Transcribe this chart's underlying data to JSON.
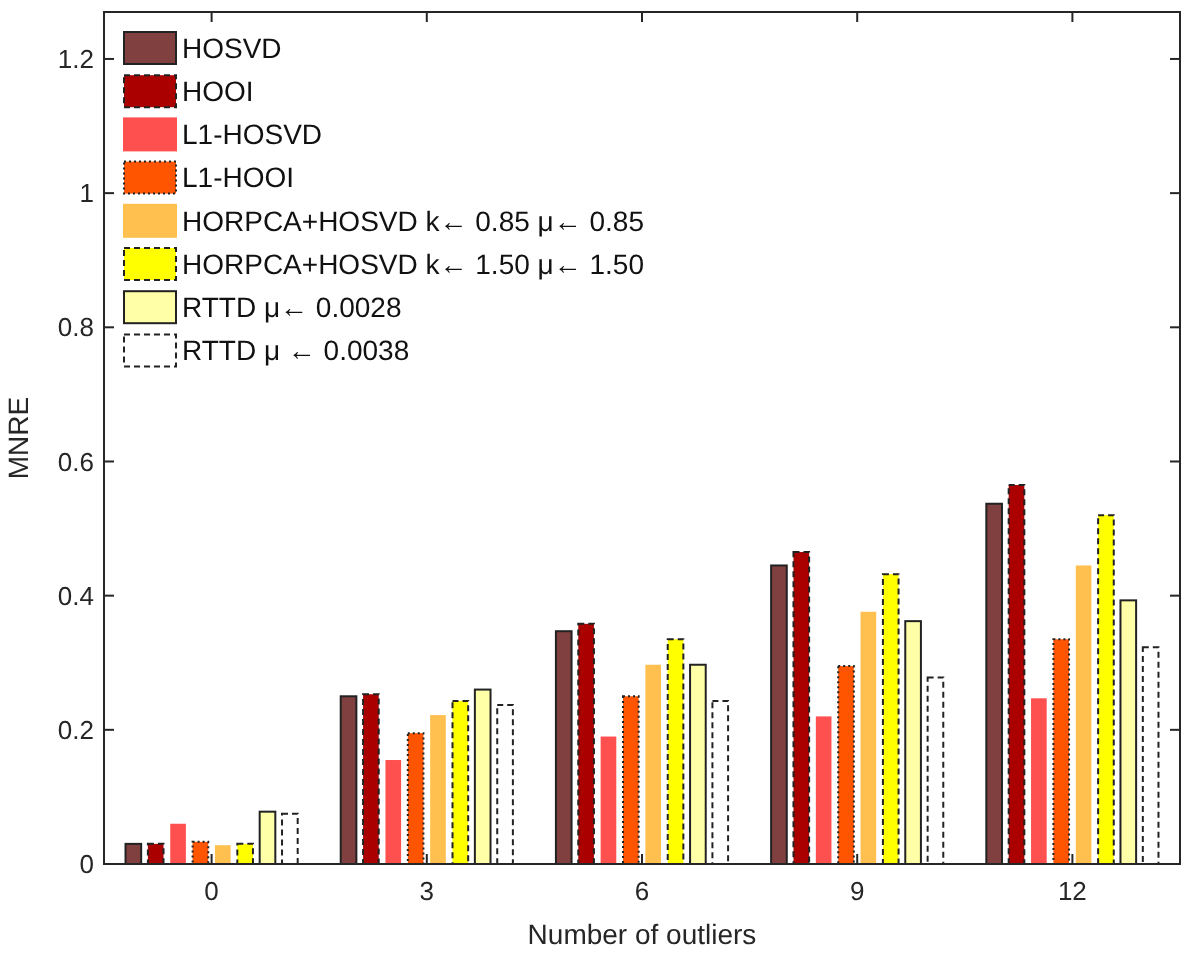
{
  "chart_data": {
    "type": "bar",
    "xlabel": "Number of outliers",
    "ylabel": "MNRE",
    "categories": [
      "0",
      "3",
      "6",
      "9",
      "12"
    ],
    "ylim": [
      0,
      1.27
    ],
    "yticks": [
      0,
      0.2,
      0.4,
      0.6,
      0.8,
      1,
      1.2
    ],
    "grid": false,
    "legend": "top left",
    "series": [
      {
        "name": "HOSVD",
        "color": "#804040",
        "line_style": "solid",
        "values": [
          0.03,
          0.25,
          0.347,
          0.445,
          0.537
        ]
      },
      {
        "name": "HOOI",
        "color": "#aa0000",
        "line_style": "dashed",
        "values": [
          0.03,
          0.253,
          0.358,
          0.465,
          0.565
        ]
      },
      {
        "name": "L1-HOSVD",
        "color": "#ff5050",
        "line_style": "none",
        "values": [
          0.06,
          0.155,
          0.19,
          0.22,
          0.247
        ]
      },
      {
        "name": "L1-HOOI",
        "color": "#ff5500",
        "line_style": "dotted",
        "values": [
          0.033,
          0.195,
          0.25,
          0.295,
          0.335
        ]
      },
      {
        "name": "HORPCA+HOSVD k← 0.85 μ← 0.85",
        "color": "#ffc050",
        "line_style": "none",
        "values": [
          0.028,
          0.222,
          0.297,
          0.376,
          0.445
        ]
      },
      {
        "name": "HORPCA+HOSVD k← 1.50 μ← 1.50",
        "color": "#ffff00",
        "line_style": "dashed",
        "values": [
          0.03,
          0.243,
          0.335,
          0.432,
          0.52
        ]
      },
      {
        "name": "RTTD μ← 0.0028",
        "color": "#ffffa8",
        "line_style": "solid",
        "values": [
          0.078,
          0.26,
          0.297,
          0.362,
          0.393
        ]
      },
      {
        "name": "RTTD μ ← 0.0038",
        "color": "#ffffff",
        "line_style": "dashed",
        "values": [
          0.075,
          0.237,
          0.243,
          0.278,
          0.323
        ]
      }
    ]
  }
}
